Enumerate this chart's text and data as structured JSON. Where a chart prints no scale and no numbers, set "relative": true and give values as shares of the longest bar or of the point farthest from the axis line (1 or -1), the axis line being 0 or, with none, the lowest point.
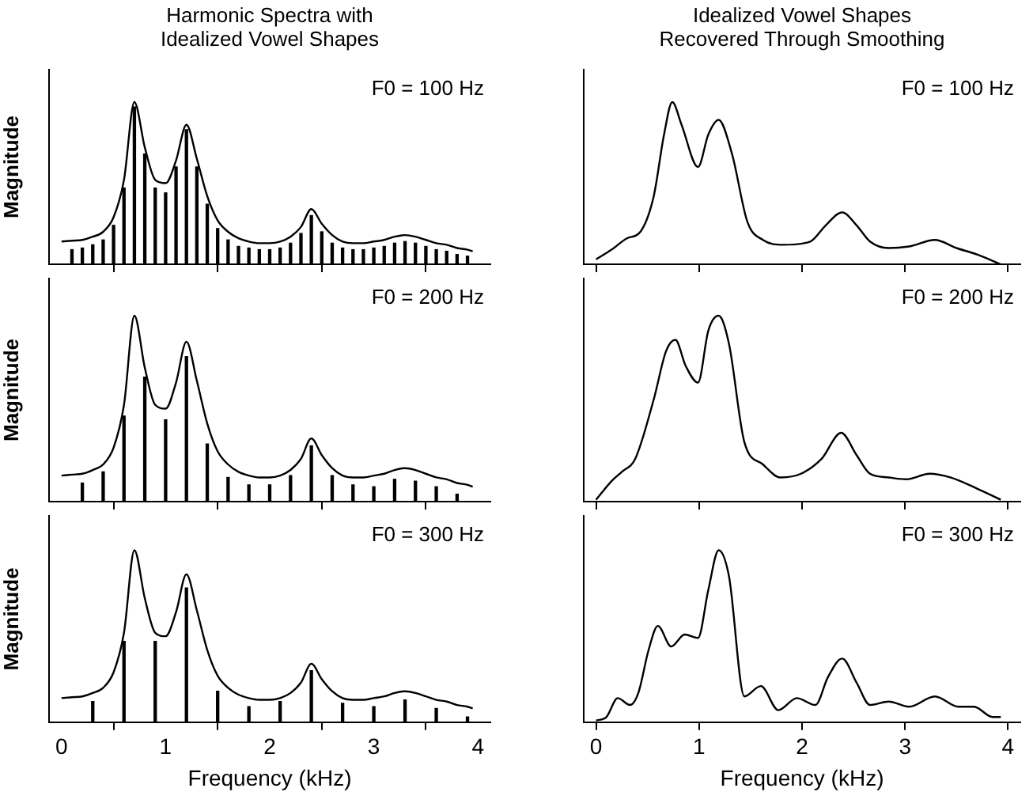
{
  "chart_data": [
    {
      "type": "line",
      "title": "Harmonic Spectra with Idealized Vowel Shapes",
      "ylabel": "Magnitude",
      "annotations": [
        "F0 = 100 Hz"
      ],
      "relative": true,
      "marker": "none",
      "xlim": [
        -0.12,
        4.12
      ],
      "xticks": [
        0,
        1,
        2,
        3,
        4
      ],
      "tick_labels": false,
      "series": [
        {
          "type": "line",
          "color": "#000000",
          "x": [
            0,
            0.1,
            0.2,
            0.3,
            0.4,
            0.5,
            0.6,
            0.7,
            0.8,
            0.9,
            1.0,
            1.1,
            1.2,
            1.3,
            1.4,
            1.5,
            1.6,
            1.7,
            1.8,
            1.9,
            2.0,
            2.1,
            2.2,
            2.3,
            2.4,
            2.5,
            2.6,
            2.7,
            2.8,
            2.9,
            3.0,
            3.1,
            3.2,
            3.3,
            3.4,
            3.5,
            3.6,
            3.7,
            3.8,
            3.9,
            3.95
          ],
          "values": [
            0.14,
            0.145,
            0.15,
            0.17,
            0.2,
            0.29,
            0.52,
            1.0,
            0.72,
            0.52,
            0.5,
            0.64,
            0.86,
            0.65,
            0.42,
            0.27,
            0.2,
            0.16,
            0.14,
            0.13,
            0.13,
            0.14,
            0.17,
            0.23,
            0.34,
            0.25,
            0.18,
            0.14,
            0.13,
            0.13,
            0.14,
            0.15,
            0.17,
            0.18,
            0.17,
            0.15,
            0.13,
            0.12,
            0.1,
            0.09,
            0.08
          ]
        },
        {
          "type": "bar",
          "color": "#000000",
          "x": [
            0.1,
            0.2,
            0.3,
            0.4,
            0.5,
            0.6,
            0.7,
            0.8,
            0.9,
            1.0,
            1.1,
            1.2,
            1.3,
            1.4,
            1.5,
            1.6,
            1.7,
            1.8,
            1.9,
            2.0,
            2.1,
            2.2,
            2.3,
            2.4,
            2.5,
            2.6,
            2.7,
            2.8,
            2.9,
            3.0,
            3.1,
            3.2,
            3.3,
            3.4,
            3.5,
            3.6,
            3.7,
            3.8,
            3.9
          ],
          "values": [
            0.09,
            0.1,
            0.12,
            0.15,
            0.24,
            0.47,
            0.97,
            0.68,
            0.47,
            0.44,
            0.6,
            0.83,
            0.6,
            0.37,
            0.22,
            0.15,
            0.11,
            0.1,
            0.09,
            0.09,
            0.1,
            0.13,
            0.19,
            0.3,
            0.2,
            0.13,
            0.1,
            0.09,
            0.09,
            0.1,
            0.11,
            0.13,
            0.14,
            0.13,
            0.11,
            0.09,
            0.08,
            0.06,
            0.05
          ]
        }
      ]
    },
    {
      "type": "line",
      "title": "Idealized Vowel Shapes Recovered Through Smoothing",
      "annotations": [
        "F0 = 100 Hz"
      ],
      "relative": true,
      "marker": "none",
      "xlim": [
        -0.12,
        4.12
      ],
      "xticks": [
        0,
        1,
        2,
        3,
        4
      ],
      "tick_labels": false,
      "series": [
        {
          "type": "line",
          "color": "#000000",
          "x": [
            0,
            0.15,
            0.3,
            0.43,
            0.56,
            0.66,
            0.74,
            0.83,
            0.99,
            1.09,
            1.19,
            1.32,
            1.47,
            1.62,
            1.82,
            2.08,
            2.23,
            2.39,
            2.53,
            2.66,
            2.84,
            3.04,
            3.29,
            3.5,
            3.7,
            3.93
          ],
          "values": [
            0.03,
            0.09,
            0.16,
            0.2,
            0.42,
            0.8,
            1.0,
            0.86,
            0.6,
            0.8,
            0.89,
            0.68,
            0.26,
            0.15,
            0.12,
            0.14,
            0.24,
            0.32,
            0.24,
            0.14,
            0.1,
            0.11,
            0.15,
            0.1,
            0.06,
            0.0
          ]
        }
      ]
    },
    {
      "type": "line",
      "ylabel": "Magnitude",
      "annotations": [
        "F0 = 200 Hz"
      ],
      "relative": true,
      "marker": "none",
      "xlim": [
        -0.12,
        4.12
      ],
      "xticks": [
        0,
        1,
        2,
        3,
        4
      ],
      "tick_labels": false,
      "series": [
        {
          "type": "line",
          "color": "#000000",
          "x": [
            0,
            0.1,
            0.2,
            0.3,
            0.4,
            0.5,
            0.6,
            0.7,
            0.8,
            0.9,
            1.0,
            1.1,
            1.2,
            1.3,
            1.4,
            1.5,
            1.6,
            1.7,
            1.8,
            1.9,
            2.0,
            2.1,
            2.2,
            2.3,
            2.4,
            2.5,
            2.6,
            2.7,
            2.8,
            2.9,
            3.0,
            3.1,
            3.2,
            3.3,
            3.4,
            3.5,
            3.6,
            3.7,
            3.8,
            3.9,
            3.95
          ],
          "values": [
            0.14,
            0.145,
            0.15,
            0.17,
            0.2,
            0.29,
            0.52,
            1.0,
            0.72,
            0.52,
            0.5,
            0.64,
            0.86,
            0.65,
            0.42,
            0.27,
            0.2,
            0.16,
            0.14,
            0.13,
            0.13,
            0.14,
            0.17,
            0.23,
            0.34,
            0.25,
            0.18,
            0.14,
            0.13,
            0.13,
            0.14,
            0.15,
            0.17,
            0.18,
            0.17,
            0.15,
            0.13,
            0.12,
            0.1,
            0.09,
            0.08
          ]
        },
        {
          "type": "bar",
          "color": "#000000",
          "x": [
            0.2,
            0.4,
            0.6,
            0.8,
            1.0,
            1.2,
            1.4,
            1.6,
            1.8,
            2.0,
            2.2,
            2.4,
            2.6,
            2.8,
            3.0,
            3.2,
            3.4,
            3.6,
            3.8
          ],
          "values": [
            0.1,
            0.16,
            0.46,
            0.67,
            0.44,
            0.78,
            0.31,
            0.13,
            0.09,
            0.09,
            0.14,
            0.3,
            0.14,
            0.09,
            0.08,
            0.12,
            0.11,
            0.08,
            0.04
          ]
        }
      ]
    },
    {
      "type": "line",
      "annotations": [
        "F0 = 200 Hz"
      ],
      "relative": true,
      "marker": "none",
      "xlim": [
        -0.12,
        4.12
      ],
      "xticks": [
        0,
        1,
        2,
        3,
        4
      ],
      "tick_labels": false,
      "series": [
        {
          "type": "line",
          "color": "#000000",
          "x": [
            0,
            0.15,
            0.25,
            0.38,
            0.56,
            0.68,
            0.77,
            0.87,
            0.99,
            1.09,
            1.19,
            1.29,
            1.44,
            1.62,
            1.79,
            1.99,
            2.19,
            2.38,
            2.53,
            2.66,
            2.84,
            3.01,
            3.24,
            3.44,
            3.7,
            3.93
          ],
          "values": [
            0.01,
            0.11,
            0.16,
            0.23,
            0.55,
            0.81,
            0.87,
            0.73,
            0.64,
            0.92,
            1.0,
            0.85,
            0.32,
            0.2,
            0.13,
            0.15,
            0.23,
            0.37,
            0.25,
            0.15,
            0.13,
            0.12,
            0.15,
            0.13,
            0.07,
            0.01
          ]
        }
      ]
    },
    {
      "type": "line",
      "ylabel": "Magnitude",
      "xlabel": "Frequency (kHz)",
      "annotations": [
        "F0 = 300 Hz"
      ],
      "relative": true,
      "marker": "none",
      "xlim": [
        -0.12,
        4.12
      ],
      "xticks": [
        0,
        1,
        2,
        3,
        4
      ],
      "tick_labels": "x",
      "series": [
        {
          "type": "line",
          "color": "#000000",
          "x": [
            0,
            0.1,
            0.2,
            0.3,
            0.4,
            0.5,
            0.6,
            0.7,
            0.8,
            0.9,
            1.0,
            1.1,
            1.2,
            1.3,
            1.4,
            1.5,
            1.6,
            1.7,
            1.8,
            1.9,
            2.0,
            2.1,
            2.2,
            2.3,
            2.4,
            2.5,
            2.6,
            2.7,
            2.8,
            2.9,
            3.0,
            3.1,
            3.2,
            3.3,
            3.4,
            3.5,
            3.6,
            3.7,
            3.8,
            3.9,
            3.95
          ],
          "values": [
            0.14,
            0.145,
            0.15,
            0.17,
            0.2,
            0.29,
            0.52,
            1.0,
            0.72,
            0.52,
            0.5,
            0.64,
            0.86,
            0.65,
            0.42,
            0.27,
            0.2,
            0.16,
            0.14,
            0.13,
            0.13,
            0.14,
            0.17,
            0.23,
            0.34,
            0.25,
            0.18,
            0.14,
            0.13,
            0.13,
            0.14,
            0.15,
            0.17,
            0.18,
            0.17,
            0.15,
            0.13,
            0.12,
            0.1,
            0.09,
            0.08
          ]
        },
        {
          "type": "bar",
          "color": "#000000",
          "x": [
            0.3,
            0.6,
            0.9,
            1.2,
            1.5,
            1.8,
            2.1,
            2.4,
            2.7,
            3.0,
            3.3,
            3.6,
            3.9
          ],
          "values": [
            0.12,
            0.47,
            0.47,
            0.78,
            0.18,
            0.09,
            0.12,
            0.3,
            0.11,
            0.09,
            0.13,
            0.08,
            0.03
          ]
        }
      ]
    },
    {
      "type": "line",
      "xlabel": "Frequency (kHz)",
      "annotations": [
        "F0 = 300 Hz"
      ],
      "relative": true,
      "marker": "none",
      "xlim": [
        -0.12,
        4.12
      ],
      "xticks": [
        0,
        1,
        2,
        3,
        4
      ],
      "tick_labels": "x",
      "series": [
        {
          "type": "line",
          "color": "#000000",
          "x": [
            0,
            0.1,
            0.21,
            0.33,
            0.41,
            0.51,
            0.6,
            0.73,
            0.86,
            0.99,
            1.09,
            1.19,
            1.29,
            1.44,
            1.6,
            1.77,
            1.95,
            2.13,
            2.25,
            2.39,
            2.53,
            2.66,
            2.84,
            3.04,
            3.29,
            3.52,
            3.67,
            3.85,
            3.93
          ],
          "values": [
            0.01,
            0.03,
            0.14,
            0.1,
            0.17,
            0.42,
            0.56,
            0.44,
            0.51,
            0.49,
            0.77,
            1.0,
            0.85,
            0.15,
            0.21,
            0.07,
            0.14,
            0.1,
            0.26,
            0.37,
            0.23,
            0.1,
            0.12,
            0.09,
            0.15,
            0.09,
            0.09,
            0.03,
            0.03
          ]
        }
      ]
    }
  ]
}
